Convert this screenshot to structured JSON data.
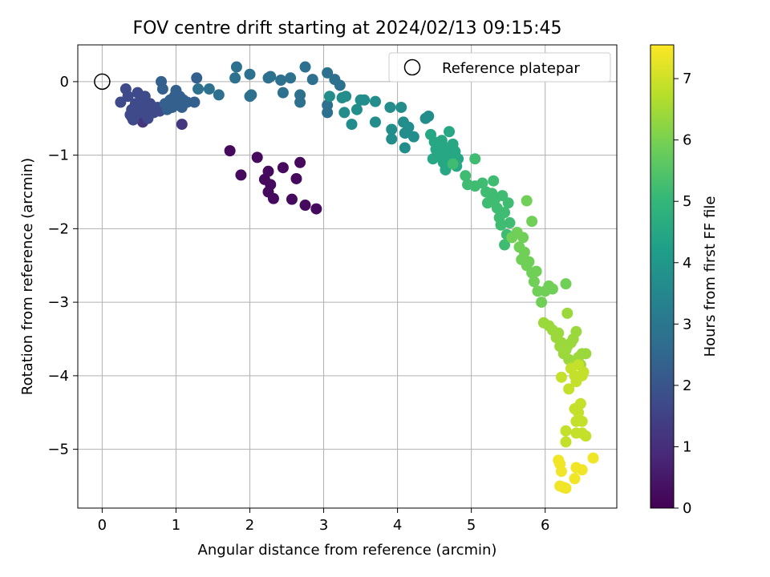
{
  "chart_data": {
    "type": "scatter",
    "title": "FOV centre drift starting at 2024/02/13 09:15:45",
    "xlabel": "Angular distance from reference (arcmin)",
    "ylabel": "Rotation from reference (arcmin)",
    "xlim": [
      -0.33,
      6.97
    ],
    "ylim": [
      -5.8,
      0.5
    ],
    "xticks": [
      0,
      1,
      2,
      3,
      4,
      5,
      6
    ],
    "yticks": [
      0,
      -1,
      -2,
      -3,
      -4,
      -5
    ],
    "xticklabels": [
      "0",
      "1",
      "2",
      "3",
      "4",
      "5",
      "6"
    ],
    "yticklabels": [
      "0",
      "−1",
      "−2",
      "−3",
      "−4",
      "−5"
    ],
    "grid": true,
    "legend": {
      "position": "top-right",
      "label": "Reference platepar"
    },
    "reference_point": {
      "x": 0,
      "y": 0
    },
    "colorbar": {
      "label": "Hours from first FF file",
      "min": 0,
      "max": 7.55,
      "ticks": [
        0,
        1,
        2,
        3,
        4,
        5,
        6,
        7
      ],
      "ticklabels": [
        "0",
        "1",
        "2",
        "3",
        "4",
        "5",
        "6",
        "7"
      ],
      "colormap": "viridis"
    },
    "series": [
      {
        "hours": 0.2,
        "points": [
          [
            1.73,
            -0.94
          ],
          [
            1.88,
            -1.27
          ],
          [
            2.1,
            -1.03
          ],
          [
            2.2,
            -1.33
          ],
          [
            2.25,
            -1.22
          ],
          [
            2.25,
            -1.5
          ],
          [
            2.28,
            -1.4
          ],
          [
            2.32,
            -1.59
          ],
          [
            2.45,
            -1.17
          ],
          [
            2.57,
            -1.6
          ],
          [
            2.63,
            -1.32
          ],
          [
            2.68,
            -1.1
          ],
          [
            2.75,
            -1.68
          ],
          [
            2.9,
            -1.73
          ]
        ]
      },
      {
        "hours": 1.2,
        "points": [
          [
            1.08,
            -0.58
          ],
          [
            0.55,
            -0.55
          ],
          [
            0.4,
            -0.48
          ]
        ]
      },
      {
        "hours": 1.7,
        "points": [
          [
            0.25,
            -0.28
          ],
          [
            0.32,
            -0.1
          ],
          [
            0.35,
            -0.2
          ],
          [
            0.38,
            -0.45
          ],
          [
            0.4,
            -0.38
          ],
          [
            0.42,
            -0.52
          ],
          [
            0.45,
            -0.3
          ],
          [
            0.48,
            -0.15
          ],
          [
            0.5,
            -0.42
          ],
          [
            0.52,
            -0.25
          ],
          [
            0.55,
            -0.35
          ],
          [
            0.58,
            -0.2
          ],
          [
            0.6,
            -0.45
          ],
          [
            0.62,
            -0.5
          ],
          [
            0.65,
            -0.3
          ],
          [
            0.68,
            -0.38
          ],
          [
            0.7,
            -0.42
          ],
          [
            0.75,
            -0.35
          ],
          [
            0.78,
            -0.4
          ]
        ]
      },
      {
        "hours": 2.3,
        "points": [
          [
            0.8,
            0.0
          ],
          [
            0.82,
            -0.1
          ],
          [
            0.85,
            -0.3
          ],
          [
            0.88,
            -0.38
          ],
          [
            0.92,
            -0.25
          ],
          [
            0.95,
            -0.35
          ],
          [
            0.98,
            -0.2
          ],
          [
            1.0,
            -0.12
          ],
          [
            1.02,
            -0.3
          ],
          [
            1.05,
            -0.2
          ],
          [
            1.08,
            -0.35
          ],
          [
            1.1,
            -0.25
          ],
          [
            1.15,
            -0.28
          ],
          [
            1.25,
            -0.28
          ],
          [
            1.28,
            0.05
          ]
        ]
      },
      {
        "hours": 2.8,
        "points": [
          [
            1.3,
            -0.1
          ],
          [
            1.45,
            -0.1
          ],
          [
            1.58,
            -0.18
          ],
          [
            1.8,
            0.05
          ],
          [
            1.82,
            0.2
          ],
          [
            2.0,
            0.1
          ],
          [
            2.0,
            -0.2
          ],
          [
            2.02,
            -0.18
          ],
          [
            2.25,
            0.05
          ],
          [
            2.28,
            0.07
          ],
          [
            2.42,
            0.02
          ],
          [
            2.45,
            -0.15
          ],
          [
            2.55,
            0.05
          ],
          [
            2.68,
            -0.18
          ],
          [
            2.68,
            -0.28
          ],
          [
            2.75,
            0.2
          ],
          [
            2.85,
            0.03
          ],
          [
            3.05,
            0.12
          ],
          [
            3.05,
            -0.32
          ],
          [
            3.05,
            -0.42
          ],
          [
            3.15,
            0.03
          ],
          [
            3.22,
            -0.05
          ]
        ]
      },
      {
        "hours": 3.7,
        "points": [
          [
            3.08,
            -0.2
          ],
          [
            3.25,
            -0.22
          ],
          [
            3.28,
            -0.42
          ],
          [
            3.3,
            -0.2
          ],
          [
            3.38,
            -0.58
          ],
          [
            3.45,
            -0.38
          ],
          [
            3.5,
            -0.25
          ],
          [
            3.55,
            -0.25
          ],
          [
            3.7,
            -0.55
          ],
          [
            3.7,
            -0.27
          ],
          [
            3.9,
            -0.35
          ],
          [
            3.92,
            -0.65
          ],
          [
            3.92,
            -0.78
          ],
          [
            4.05,
            -0.35
          ],
          [
            4.08,
            -0.55
          ],
          [
            4.1,
            -0.7
          ],
          [
            4.1,
            -0.9
          ],
          [
            4.15,
            -0.62
          ],
          [
            4.22,
            -0.75
          ],
          [
            4.38,
            -0.5
          ],
          [
            4.42,
            -0.47
          ]
        ]
      },
      {
        "hours": 4.5,
        "points": [
          [
            4.45,
            -0.72
          ],
          [
            4.5,
            -0.82
          ],
          [
            4.48,
            -1.05
          ],
          [
            4.55,
            -0.95
          ],
          [
            4.6,
            -0.8
          ],
          [
            4.62,
            -1.1
          ],
          [
            4.65,
            -1.2
          ],
          [
            4.68,
            -0.95
          ],
          [
            4.7,
            -0.68
          ],
          [
            4.72,
            -1.0
          ],
          [
            4.75,
            -0.85
          ],
          [
            4.78,
            -0.95
          ],
          [
            4.8,
            -1.15
          ],
          [
            4.82,
            -1.05
          ],
          [
            4.62,
            -0.88
          ],
          [
            4.58,
            -1.0
          ],
          [
            4.52,
            -0.92
          ],
          [
            4.66,
            -1.06
          ]
        ]
      },
      {
        "hours": 5.2,
        "points": [
          [
            4.75,
            -1.12
          ],
          [
            4.92,
            -1.28
          ],
          [
            4.95,
            -1.4
          ],
          [
            5.05,
            -1.42
          ],
          [
            5.15,
            -1.38
          ],
          [
            5.2,
            -1.5
          ],
          [
            5.22,
            -1.65
          ],
          [
            5.28,
            -1.52
          ],
          [
            5.3,
            -1.35
          ],
          [
            5.32,
            -1.6
          ],
          [
            5.35,
            -1.72
          ],
          [
            5.38,
            -1.85
          ],
          [
            5.4,
            -1.95
          ],
          [
            5.42,
            -1.55
          ],
          [
            5.45,
            -1.78
          ],
          [
            5.48,
            -2.08
          ],
          [
            5.45,
            -2.22
          ],
          [
            5.52,
            -1.92
          ],
          [
            5.5,
            -1.65
          ],
          [
            5.05,
            -1.05
          ]
        ]
      },
      {
        "hours": 5.9,
        "points": [
          [
            5.55,
            -2.12
          ],
          [
            5.62,
            -2.05
          ],
          [
            5.65,
            -2.25
          ],
          [
            5.68,
            -2.42
          ],
          [
            5.7,
            -2.12
          ],
          [
            5.72,
            -2.32
          ],
          [
            5.75,
            -2.5
          ],
          [
            5.78,
            -2.45
          ],
          [
            5.82,
            -2.6
          ],
          [
            5.85,
            -2.72
          ],
          [
            5.88,
            -2.58
          ],
          [
            5.9,
            -2.85
          ],
          [
            5.95,
            -3.0
          ],
          [
            6.0,
            -2.85
          ],
          [
            6.05,
            -2.78
          ],
          [
            6.1,
            -2.82
          ],
          [
            6.28,
            -2.75
          ],
          [
            5.82,
            -1.9
          ],
          [
            5.75,
            -1.62
          ]
        ]
      },
      {
        "hours": 6.4,
        "points": [
          [
            5.98,
            -3.28
          ],
          [
            6.05,
            -3.32
          ],
          [
            6.1,
            -3.38
          ],
          [
            6.15,
            -3.48
          ],
          [
            6.18,
            -3.42
          ],
          [
            6.2,
            -3.6
          ],
          [
            6.22,
            -3.55
          ],
          [
            6.25,
            -3.7
          ],
          [
            6.28,
            -3.65
          ],
          [
            6.3,
            -3.6
          ],
          [
            6.32,
            -3.78
          ],
          [
            6.35,
            -3.55
          ],
          [
            6.38,
            -3.5
          ],
          [
            6.42,
            -3.4
          ],
          [
            6.45,
            -3.75
          ],
          [
            6.48,
            -3.85
          ],
          [
            6.5,
            -3.7
          ],
          [
            6.55,
            -3.7
          ],
          [
            6.3,
            -3.15
          ]
        ]
      },
      {
        "hours": 6.9,
        "points": [
          [
            6.22,
            -4.02
          ],
          [
            6.32,
            -4.18
          ],
          [
            6.35,
            -3.9
          ],
          [
            6.4,
            -4.0
          ],
          [
            6.42,
            -4.08
          ],
          [
            6.45,
            -3.85
          ],
          [
            6.5,
            -4.0
          ],
          [
            6.52,
            -3.95
          ],
          [
            6.4,
            -4.45
          ],
          [
            6.42,
            -4.62
          ],
          [
            6.45,
            -4.5
          ],
          [
            6.48,
            -4.38
          ],
          [
            6.5,
            -4.62
          ],
          [
            6.5,
            -4.78
          ],
          [
            6.42,
            -4.78
          ],
          [
            6.28,
            -4.75
          ],
          [
            6.28,
            -4.9
          ],
          [
            6.55,
            -4.82
          ]
        ]
      },
      {
        "hours": 7.4,
        "points": [
          [
            6.18,
            -5.15
          ],
          [
            6.2,
            -5.2
          ],
          [
            6.2,
            -5.5
          ],
          [
            6.25,
            -5.52
          ],
          [
            6.28,
            -5.53
          ],
          [
            6.22,
            -5.3
          ],
          [
            6.42,
            -5.25
          ],
          [
            6.5,
            -5.28
          ],
          [
            6.4,
            -5.4
          ],
          [
            6.65,
            -5.12
          ]
        ]
      }
    ]
  }
}
